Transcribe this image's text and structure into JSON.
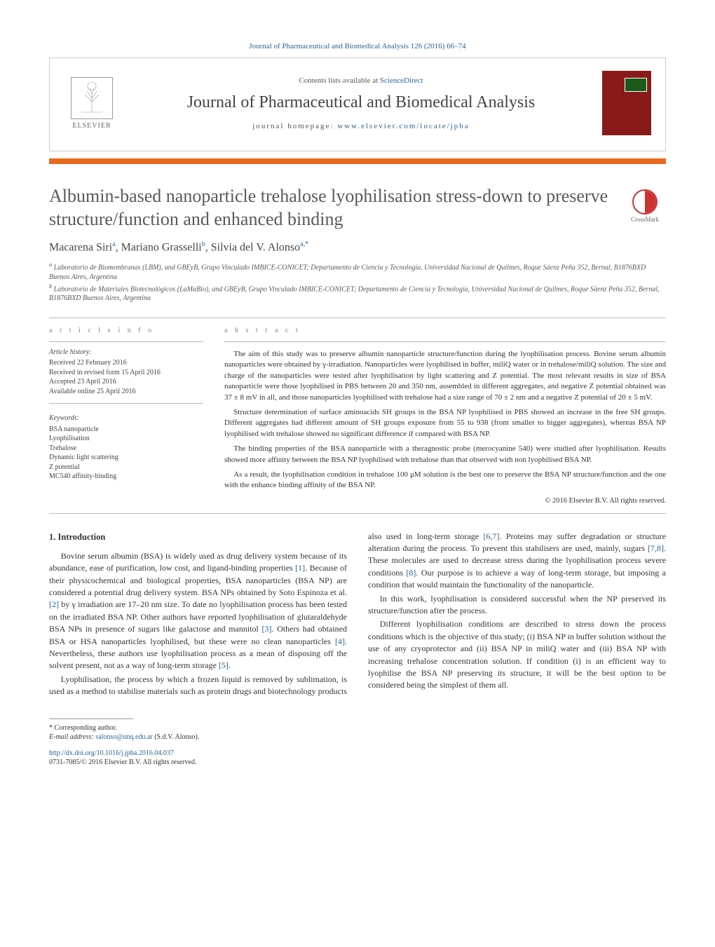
{
  "running_head": "Journal of Pharmaceutical and Biomedical Analysis 126 (2016) 66–74",
  "header": {
    "publisher": "ELSEVIER",
    "contents_prefix": "Contents lists available at ",
    "contents_link": "ScienceDirect",
    "journal_name": "Journal of Pharmaceutical and Biomedical Analysis",
    "homepage_prefix": "journal homepage: ",
    "homepage_url": "www.elsevier.com/locate/jpba"
  },
  "crossmark_label": "CrossMark",
  "title": "Albumin-based nanoparticle trehalose lyophilisation stress-down to preserve structure/function and enhanced binding",
  "authors_html": "Macarena Siri<sup>a</sup>, Mariano Grasselli<sup>b</sup>, Silvia del V. Alonso<sup>a,*</sup>",
  "affiliations": {
    "a": "Laboratorio de Biomembranas (LBM), and GBEyB, Grupo Vinculado IMBICE-CONICET; Departamento de Ciencia y Tecnología, Universidad Nacional de Quilmes, Roque Sáenz Peña 352, Bernal, B1876BXD Buenos Aires, Argentina",
    "b": "Laboratorio de Materiales Biotecnológicos (LaMaBio), and GBEyB, Grupo Vinculado IMBICE-CONICET; Departamento de Ciencia y Tecnología, Universidad Nacional de Quilmes, Roque Sáenz Peña 352, Bernal, B1876BXD Buenos Aires, Argentina"
  },
  "article_info": {
    "heading": "a r t i c l e   i n f o",
    "history_head": "Article history:",
    "received": "Received 22 February 2016",
    "revised": "Received in revised form 15 April 2016",
    "accepted": "Accepted 23 April 2016",
    "online": "Available online 25 April 2016",
    "keywords_head": "Keywords:",
    "keywords": [
      "BSA nanoparticle",
      "Lyophilisation",
      "Trehalose",
      "Dynamic light scattering",
      "Z potential",
      "MC540 affinity-binding"
    ]
  },
  "abstract": {
    "heading": "a b s t r a c t",
    "p1": "The aim of this study was to preserve albumin nanoparticle structure/function during the lyophilisation process. Bovine serum albumin nanoparticles were obtained by γ-irradiation. Nanoparticles were lyophilised in buffer, miliQ water or in trehalose/miliQ solution. The size and charge of the nanoparticles were tested after lyophilisation by light scattering and Z potential. The most relevant results in size of BSA nanoparticle were those lyophilised in PBS between 20 and 350 nm, assembled in different aggregates, and negative Z potential obtained was 37 ± 8 mV in all, and those nanoparticles lyophilised with trehalose had a size range of 70 ± 2 nm and a negative Z potential of 20 ± 5 mV.",
    "p2": "Structure determination of surface aminoacids SH groups in the BSA NP lyophilised in PBS showed an increase in the free SH groups. Different aggregates had different amount of SH groups exposure from 55 to 938 (from smaller to bigger aggregates), whereas BSA NP lyophilised with trehalose showed no significant difference if compared with BSA NP.",
    "p3": "The binding properties of the BSA nanoparticle with a theragnostic probe (merocyanine 540) were studied after lyophilisation. Results showed more affinity between the BSA NP lyophilised with trehalose than that observed with non lyophilised BSA NP.",
    "p4": "As a result, the lyophilisation condition in trehalose 100 μM solution is the best one to preserve the BSA NP structure/function and the one with the enhance binding affinity of the BSA NP.",
    "copyright": "© 2016 Elsevier B.V. All rights reserved."
  },
  "intro": {
    "heading": "1. Introduction",
    "p1": "Bovine serum albumin (BSA) is widely used as drug delivery system because of its abundance, ease of purification, low cost, and ligand-binding properties [1]. Because of their physicochemical and biological properties, BSA nanoparticles (BSA NP) are considered a potential drug delivery system. BSA NPs obtained by Soto Espinoza et al. [2] by γ irradiation are 17–20 nm size. To date no lyophilisation process has been tested on the irradiated BSA NP. Other authors have reported lyophilisation of glutaraldehyde BSA NPs in presence of sugars like galactose and mannitol [3]. Others had obtained BSA or HSA nanoparticles lyophilised, but these were no clean nanoparticles [4]. Nevertheless, these authors use lyophilisation process as a mean of disposing off the solvent present, not as a way of long-term storage [5].",
    "p2": "Lyophilisation, the process by which a frozen liquid is removed by sublimation, is used as a method to stabilise materials such as protein drugs and biotechnology products also used in long-term storage [6,7]. Proteins may suffer degradation or structure alteration during the process. To prevent this stabilisers are used, mainly, sugars [7,8]. These molecules are used to decrease stress during the lyophilisation process severe conditions [8]. Our purpose is to achieve a way of long-term storage, but imposing a condition that would maintain the functionality of the nanoparticle.",
    "p3": "In this work, lyophilisation is considered successful when the NP preserved its structure/function after the process.",
    "p4": "Different lyophilisation conditions are described to stress down the process conditions which is the objective of this study; (i) BSA NP in buffer solution without the use of any cryoprotector and (ii) BSA NP in miliQ water and (iii) BSA NP with increasing trehalose concentration solution. If condition (i) is an efficient way to lyophilise the BSA NP preserving its structure, it will be the best option to be considered being the simplest of them all."
  },
  "footnotes": {
    "corr": "* Corresponding author.",
    "email_label": "E-mail address: ",
    "email": "salonso@unq.edu.ar",
    "email_suffix": " (S.d.V. Alonso)."
  },
  "doi": {
    "url": "http://dx.doi.org/10.1016/j.jpba.2016.04.037",
    "issn_line": "0731-7085/© 2016 Elsevier B.V. All rights reserved."
  },
  "colors": {
    "link": "#2a6496",
    "accent_bar": "#e8a61f",
    "cover_bg": "#8a1a1a",
    "crossmark": "#c33"
  }
}
